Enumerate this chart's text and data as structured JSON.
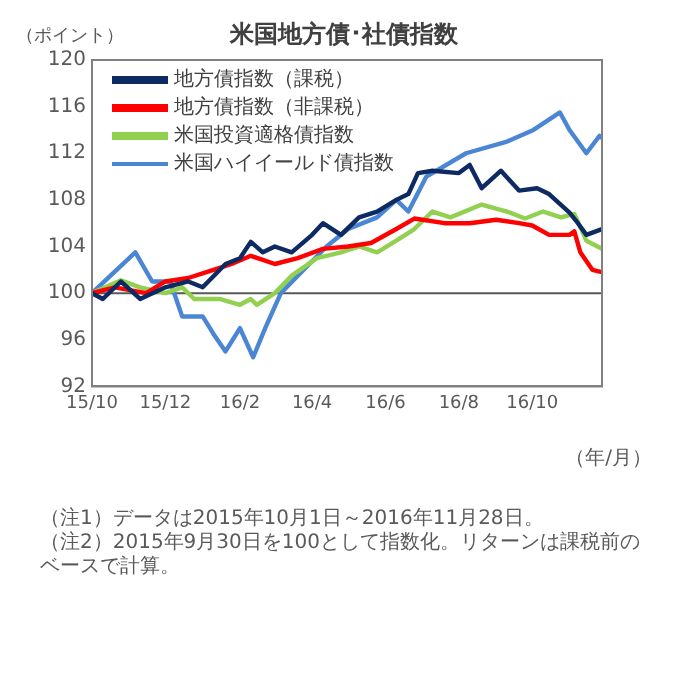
{
  "chart_data": {
    "type": "line",
    "title": "米国地方債･社債指数",
    "ylabel": "（ポイント）",
    "xlabel": "（年/月）",
    "xlim": [
      "2015-10-01",
      "2016-11-28"
    ],
    "xticks": [
      {
        "value": "2015-10-01",
        "label": "15/10"
      },
      {
        "value": "2015-12-01",
        "label": "15/12"
      },
      {
        "value": "2016-02-01",
        "label": "16/2"
      },
      {
        "value": "2016-04-01",
        "label": "16/4"
      },
      {
        "value": "2016-06-01",
        "label": "16/6"
      },
      {
        "value": "2016-08-01",
        "label": "16/8"
      },
      {
        "value": "2016-10-01",
        "label": "16/10"
      }
    ],
    "ylim": [
      92,
      120
    ],
    "yticks": [
      92,
      96,
      100,
      104,
      108,
      112,
      116,
      120
    ],
    "grid": false,
    "legend": "top left",
    "marker": "none",
    "line_style": "solid",
    "ref_lines": [
      {
        "axis": "y",
        "value": 100,
        "color": "#595959"
      }
    ],
    "series": [
      {
        "name": "地方債指数（課税）",
        "color": "#0d2a63",
        "x": [
          "2015-10-01",
          "2015-10-10",
          "2015-10-25",
          "2015-11-10",
          "2015-12-01",
          "2015-12-20",
          "2016-01-01",
          "2016-01-20",
          "2016-02-01",
          "2016-02-10",
          "2016-02-20",
          "2016-03-01",
          "2016-03-15",
          "2016-04-01",
          "2016-04-10",
          "2016-04-25",
          "2016-05-10",
          "2016-05-25",
          "2016-06-10",
          "2016-06-20",
          "2016-06-28",
          "2016-07-10",
          "2016-08-01",
          "2016-08-10",
          "2016-08-20",
          "2016-09-05",
          "2016-09-20",
          "2016-10-05",
          "2016-10-15",
          "2016-11-01",
          "2016-11-08",
          "2016-11-15",
          "2016-11-28"
        ],
        "values": [
          100,
          99.5,
          101,
          99.5,
          100.5,
          101,
          100.5,
          102.5,
          103,
          104.4,
          103.5,
          104,
          103.5,
          105,
          106,
          105,
          106.5,
          107,
          108,
          108.5,
          110.3,
          110.5,
          110.3,
          111,
          109,
          110.5,
          108.8,
          109,
          108.5,
          106.9,
          106,
          105,
          105.5
        ]
      },
      {
        "name": "地方債指数（非課税）",
        "color": "#ff0000",
        "x": [
          "2015-10-01",
          "2015-10-20",
          "2015-11-15",
          "2015-12-01",
          "2015-12-20",
          "2016-01-10",
          "2016-01-25",
          "2016-02-10",
          "2016-03-01",
          "2016-03-20",
          "2016-04-10",
          "2016-05-01",
          "2016-05-20",
          "2016-06-10",
          "2016-06-25",
          "2016-07-20",
          "2016-08-10",
          "2016-09-01",
          "2016-09-20",
          "2016-10-01",
          "2016-10-15",
          "2016-11-01",
          "2016-11-05",
          "2016-11-10",
          "2016-11-20",
          "2016-11-28"
        ],
        "values": [
          100,
          100.5,
          100,
          101,
          101.3,
          102,
          102.5,
          103.2,
          102.5,
          103,
          103.8,
          104,
          104.3,
          105.5,
          106.4,
          106,
          106,
          106.3,
          106,
          105.8,
          105,
          105,
          105.3,
          103.5,
          102,
          101.8
        ]
      },
      {
        "name": "米国投資適格債指数",
        "color": "#92d050",
        "x": [
          "2015-10-01",
          "2015-10-25",
          "2015-11-10",
          "2015-12-01",
          "2015-12-15",
          "2015-12-25",
          "2016-01-15",
          "2016-02-01",
          "2016-02-10",
          "2016-02-15",
          "2016-03-01",
          "2016-03-15",
          "2016-04-05",
          "2016-04-25",
          "2016-05-10",
          "2016-05-25",
          "2016-06-10",
          "2016-06-25",
          "2016-07-10",
          "2016-07-25",
          "2016-08-20",
          "2016-09-10",
          "2016-09-25",
          "2016-10-10",
          "2016-10-25",
          "2016-11-05",
          "2016-11-15",
          "2016-11-28"
        ],
        "values": [
          100,
          101.1,
          100.5,
          100,
          100.5,
          99.5,
          99.5,
          99,
          99.5,
          99,
          100,
          101.5,
          103,
          103.5,
          104,
          103.5,
          104.5,
          105.5,
          107,
          106.5,
          107.6,
          107,
          106.4,
          107,
          106.5,
          106.8,
          104.5,
          103.8
        ]
      },
      {
        "name": "米国ハイイールド債指数",
        "color": "#4a86d4",
        "x": [
          "2015-10-01",
          "2015-11-06",
          "2015-11-20",
          "2015-12-05",
          "2015-12-15",
          "2016-01-01",
          "2016-01-10",
          "2016-01-20",
          "2016-02-01",
          "2016-02-12",
          "2016-02-22",
          "2016-03-06",
          "2016-03-25",
          "2016-04-13",
          "2016-05-01",
          "2016-05-25",
          "2016-06-10",
          "2016-06-20",
          "2016-06-30",
          "2016-07-05",
          "2016-08-07",
          "2016-09-10",
          "2016-10-02",
          "2016-10-24",
          "2016-11-01",
          "2016-11-15",
          "2016-11-26",
          "2016-11-28"
        ],
        "values": [
          100,
          103.5,
          101,
          101,
          98,
          98,
          96.5,
          95,
          97,
          94.5,
          97,
          100,
          102,
          104,
          105.5,
          106.5,
          108,
          107,
          109,
          110,
          112,
          113,
          114,
          115.5,
          114,
          112,
          113.5,
          113.3
        ]
      }
    ],
    "annotations": [
      "（注1）データは2015年10月1日～2016年11月28日。",
      "（注2）2015年9月30日を100として指数化。リターンは課税前のベースで計算。"
    ]
  }
}
